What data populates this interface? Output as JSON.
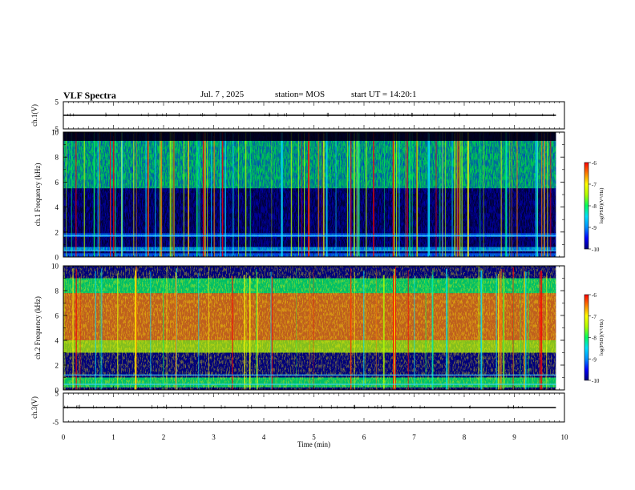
{
  "header": {
    "title": "VLF Spectra",
    "date": "Jul. 7 , 2025",
    "station": "station= MOS",
    "start": "start UT = 14:20:1"
  },
  "colors": {
    "colormap": [
      "#00007a",
      "#0000ff",
      "#0090ff",
      "#00e0ff",
      "#00ff60",
      "#b0ff00",
      "#ffff00",
      "#ff8000",
      "#ff0000",
      "#ffe0e0"
    ]
  },
  "chart_data": [
    {
      "type": "line",
      "ylabel": "ch.1(V)",
      "yticks": [
        "5",
        "-5"
      ],
      "ylim": [
        -5,
        5
      ],
      "xlim": [
        0,
        10
      ],
      "series": [
        {
          "x": [
            0,
            9.83
          ],
          "y": [
            0,
            0
          ]
        }
      ]
    },
    {
      "type": "heatmap",
      "ylabel": "ch.1 Frequency (kHz)",
      "yticks": [
        "0",
        "2",
        "4",
        "6",
        "8",
        "10"
      ],
      "ylim": [
        0,
        10
      ],
      "xlim": [
        0,
        10
      ],
      "colorbar": {
        "label": "log(PSD)(V²/Hz)",
        "ticks": [
          "-6",
          "-7",
          "-8",
          "-9",
          "-10"
        ],
        "range": [
          -10,
          -6
        ]
      },
      "bands_khz": [
        {
          "from": 0.0,
          "to": 0.3,
          "level": -9.0
        },
        {
          "from": 0.5,
          "to": 0.8,
          "level": -8.7
        },
        {
          "from": 1.6,
          "to": 1.9,
          "level": -9.1
        },
        {
          "from": 5.5,
          "to": 9.3,
          "level": -8.3
        }
      ]
    },
    {
      "type": "heatmap",
      "ylabel": "ch.2 Frequency (kHz)",
      "yticks": [
        "0",
        "2",
        "4",
        "6",
        "8",
        "10"
      ],
      "ylim": [
        0,
        10
      ],
      "xlim": [
        0,
        10
      ],
      "colorbar": {
        "label": "log(PSD)(V²/Hz)",
        "ticks": [
          "-6",
          "-7",
          "-8",
          "-9",
          "-10"
        ],
        "range": [
          -10,
          -6
        ]
      },
      "bands_khz": [
        {
          "from": 0.2,
          "to": 1.0,
          "level": -8.3
        },
        {
          "from": 3.0,
          "to": 4.0,
          "level": -8.0
        },
        {
          "from": 4.0,
          "to": 7.8,
          "level": -6.8
        },
        {
          "from": 7.8,
          "to": 9.0,
          "level": -8.2
        }
      ]
    },
    {
      "type": "line",
      "ylabel": "ch.3(V)",
      "yticks": [
        "5",
        "-5"
      ],
      "ylim": [
        -5,
        5
      ],
      "xlim": [
        0,
        10
      ],
      "xlabel": "Time (min)",
      "xticks": [
        "0",
        "1",
        "2",
        "3",
        "4",
        "5",
        "6",
        "7",
        "8",
        "9",
        "10"
      ],
      "series": [
        {
          "x": [
            0,
            9.83
          ],
          "y": [
            0,
            0
          ]
        }
      ]
    }
  ]
}
